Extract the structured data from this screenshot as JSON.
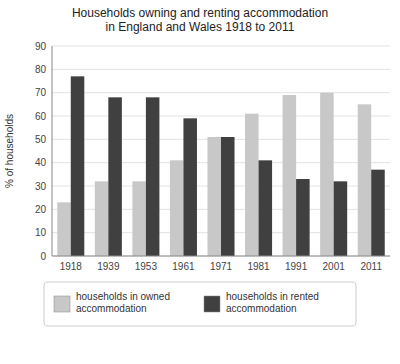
{
  "chart_data": {
    "type": "bar",
    "title": "Households owning and renting accommodation\nin England and Wales 1918 to 2011",
    "categories": [
      "1918",
      "1939",
      "1953",
      "1961",
      "1971",
      "1981",
      "1991",
      "2001",
      "2011"
    ],
    "series": [
      {
        "name": "households in owned\naccommodation",
        "color": "#c8c8c8",
        "values": [
          23,
          32,
          32,
          41,
          51,
          61,
          69,
          70,
          65
        ]
      },
      {
        "name": "households in rented\naccommodation",
        "color": "#404040",
        "values": [
          77,
          68,
          68,
          59,
          51,
          41,
          33,
          32,
          37
        ]
      }
    ],
    "ylabel": "% of households",
    "ylim": [
      0,
      90
    ],
    "yticks": [
      0,
      10,
      20,
      30,
      40,
      50,
      60,
      70,
      80,
      90
    ],
    "grid": true,
    "legend": "bottom"
  }
}
